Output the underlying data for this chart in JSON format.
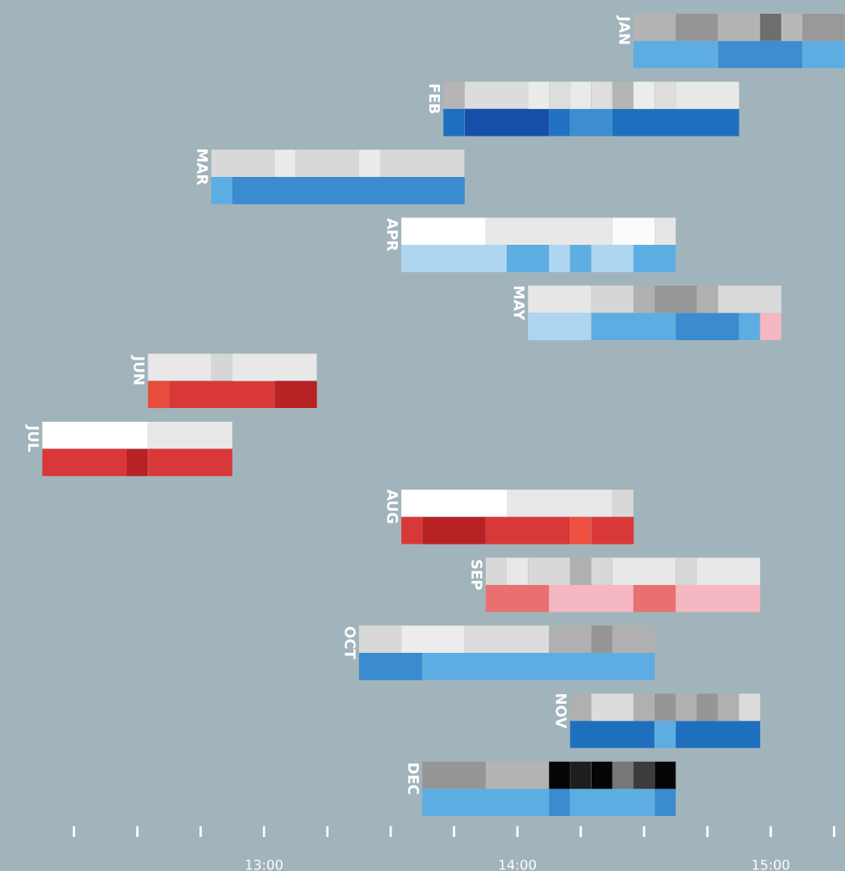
{
  "chart_data": {
    "type": "bar",
    "orientation": "horizontal",
    "categories": [
      "JAN",
      null,
      "FEB",
      null,
      "MAR",
      null,
      "APR",
      null,
      "MAY",
      null,
      "JUN",
      null,
      "JUL",
      null,
      "AUG",
      null,
      "SEP",
      null,
      "OCT",
      null,
      "NOV",
      null,
      "DEC",
      null
    ],
    "series": [
      {
        "values": [
          0.167,
          0.333,
          0.083,
          0.083,
          0.25,
          0.083,
          0.333,
          0.417,
          0.25,
          0.25,
          0.25,
          0.083,
          0.417,
          0.333,
          0.417,
          0.083,
          0.083,
          0.25,
          0.167,
          0.25,
          0.083,
          0.333,
          0.25,
          0.5
        ],
        "base": [
          14.458,
          14.458,
          13.708,
          13.708,
          12.792,
          12.792,
          13.542,
          13.542,
          14.042,
          14.042,
          12.542,
          12.542,
          12.125,
          12.125,
          13.542,
          13.542,
          13.875,
          13.875,
          13.375,
          13.375,
          14.208,
          14.208,
          13.625,
          13.625
        ],
        "colors": [
          "#b3b3b3",
          "#5dade2",
          "#b5b5b5",
          "#1f6fbf",
          "#d8d8d8",
          "#5dade2",
          "#ffffff",
          "#aed6f1",
          "#e6e6e6",
          "#aed6f1",
          "#e8e8e8",
          "#e74c3c",
          "#ffffff",
          "#d93838",
          "#ffffff",
          "#d93838",
          "#d8d8d8",
          "#e87070",
          "#d8d8d8",
          "#3a8bd0",
          "#b0b0b0",
          "#1f6fbf",
          "#959595",
          "#5dade2"
        ]
      },
      {
        "values": [
          0.167,
          0.333,
          0.25,
          0.333,
          0.083,
          0.917,
          0.5,
          0.167,
          0.167,
          0.333,
          0.083,
          0.417,
          0.333,
          0.083,
          0.417,
          0.25,
          0.083,
          0.333,
          0.25,
          0.917,
          0.167,
          0.083,
          0.25,
          0.083
        ],
        "base": [
          14.625,
          14.792,
          13.792,
          13.792,
          13.042,
          12.875,
          13.875,
          13.958,
          14.292,
          14.292,
          12.792,
          12.625,
          12.542,
          12.458,
          13.958,
          13.625,
          13.958,
          14.125,
          13.542,
          13.625,
          14.292,
          14.542,
          13.875,
          14.125
        ],
        "colors": [
          "#959595",
          "#3d8dd0",
          "#dcdcdc",
          "#1450a8",
          "#ebebeb",
          "#3a8bd0",
          "#e8e8e8",
          "#5dade2",
          "#d6d6d6",
          "#5dade2",
          "#d6d6d6",
          "#d93838",
          "#e8e8e8",
          "#b82225",
          "#e8e8e8",
          "#b82225",
          "#e8e8e8",
          "#f5b7c1",
          "#ececec",
          "#5dade2",
          "#dcdcdc",
          "#5dade2",
          "#b3b3b3",
          "#3a8bd0"
        ]
      },
      {
        "values": [
          0.167,
          0.167,
          0.083,
          0.083,
          0.25,
          null,
          0.167,
          0.083,
          0.083,
          0.25,
          0.333,
          0.167,
          null,
          0.333,
          0.083,
          0.333,
          0.167,
          0.167,
          0.333,
          null,
          0.083,
          0.333,
          0.083,
          0.333
        ],
        "base": [
          14.792,
          15.125,
          14.042,
          14.125,
          13.125,
          null,
          14.375,
          14.125,
          14.458,
          14.625,
          12.875,
          13.042,
          null,
          12.542,
          14.375,
          13.875,
          14.042,
          14.458,
          13.792,
          null,
          14.458,
          14.625,
          14.125,
          14.208
        ],
        "colors": [
          "#b3b3b3",
          "#5dade2",
          "#ebebeb",
          "#2272c3",
          "#d8d8d8",
          null,
          "#fbfbfb",
          "#aed6f1",
          "#b0b0b0",
          "#3a8bd0",
          "#e8e8e8",
          "#b82225",
          null,
          "#d93838",
          "#d8d8d8",
          "#d93838",
          "#d8d8d8",
          "#e87070",
          "#dcdcdc",
          null,
          "#b0b0b0",
          "#1f6fbf",
          "#050505",
          "#5dade2"
        ]
      },
      {
        "values": [
          0.083,
          null,
          0.083,
          0.167,
          0.083,
          null,
          0.083,
          0.083,
          0.167,
          0.083,
          null,
          null,
          null,
          null,
          null,
          0.083,
          0.083,
          0.333,
          0.167,
          null,
          0.083,
          null,
          0.083,
          0.083
        ],
        "base": [
          14.958,
          null,
          14.125,
          14.208,
          13.375,
          null,
          14.542,
          14.208,
          14.542,
          14.875,
          null,
          null,
          null,
          null,
          null,
          14.208,
          14.208,
          14.625,
          14.125,
          null,
          14.542,
          null,
          14.208,
          14.542
        ],
        "colors": [
          "#6e6e6e",
          null,
          "#dddddd",
          "#3d8dd0",
          "#ebebeb",
          null,
          "#e6e6e6",
          "#5dade2",
          "#979797",
          "#5dade2",
          null,
          null,
          null,
          null,
          null,
          "#ef5040",
          "#b0b0b0",
          "#f5b7c1",
          "#b0b0b0",
          null,
          "#959595",
          null,
          "#1e1e1e",
          "#3a8bd0"
        ]
      },
      {
        "values": [
          0.083,
          null,
          0.083,
          0.5,
          0.333,
          null,
          null,
          0.167,
          0.083,
          0.083,
          null,
          null,
          null,
          null,
          null,
          0.167,
          0.083,
          null,
          0.083,
          null,
          0.083,
          null,
          0.083,
          null
        ],
        "base": [
          15.042,
          null,
          14.208,
          14.375,
          13.458,
          null,
          null,
          14.292,
          14.708,
          14.958,
          null,
          null,
          null,
          null,
          null,
          14.292,
          14.292,
          null,
          14.292,
          null,
          14.625,
          null,
          14.292,
          null
        ],
        "colors": [
          "#b8b8b8",
          null,
          "#eaeaea",
          "#1f6fbf",
          "#d8d8d8",
          null,
          null,
          "#aed6f1",
          "#b0b0b0",
          "#f5b7c1",
          null,
          null,
          null,
          null,
          null,
          "#d93838",
          "#d8d8d8",
          null,
          "#959595",
          null,
          "#b0b0b0",
          null,
          "#050505",
          null
        ]
      },
      {
        "values": [
          0.167,
          null,
          0.083,
          null,
          null,
          null,
          null,
          0.167,
          0.25,
          null,
          null,
          null,
          null,
          null,
          null,
          null,
          0.25,
          null,
          0.167,
          null,
          0.083,
          null,
          0.083,
          null
        ],
        "base": [
          15.125,
          null,
          14.292,
          null,
          null,
          null,
          null,
          14.458,
          14.792,
          null,
          null,
          null,
          null,
          null,
          null,
          null,
          14.375,
          null,
          14.375,
          null,
          14.708,
          null,
          14.375,
          null
        ],
        "colors": [
          "#999999",
          null,
          "#dedede",
          null,
          null,
          null,
          null,
          "#5dade2",
          "#d9d9d9",
          null,
          null,
          null,
          null,
          null,
          null,
          null,
          "#e8e8e8",
          null,
          "#b0b0b0",
          null,
          "#959595",
          null,
          "#777777",
          null
        ]
      },
      {
        "values": [
          null,
          null,
          0.083,
          null,
          null,
          null,
          null,
          null,
          null,
          null,
          null,
          null,
          null,
          null,
          null,
          null,
          0.083,
          null,
          null,
          null,
          0.083,
          null,
          0.083,
          null
        ],
        "base": [
          null,
          null,
          14.375,
          null,
          null,
          null,
          null,
          null,
          null,
          null,
          null,
          null,
          null,
          null,
          null,
          null,
          14.625,
          null,
          null,
          null,
          14.792,
          null,
          14.458,
          null
        ],
        "colors": [
          null,
          null,
          "#b5b5b5",
          null,
          null,
          null,
          null,
          null,
          null,
          null,
          null,
          null,
          null,
          null,
          null,
          null,
          "#d8d8d8",
          null,
          null,
          null,
          "#b0b0b0",
          null,
          "#3c3c3c",
          null
        ]
      },
      {
        "values": [
          null,
          null,
          0.083,
          null,
          null,
          null,
          null,
          null,
          null,
          null,
          null,
          null,
          null,
          null,
          null,
          null,
          0.25,
          null,
          null,
          null,
          0.083,
          null,
          0.083,
          null
        ],
        "base": [
          null,
          null,
          14.458,
          null,
          null,
          null,
          null,
          null,
          null,
          null,
          null,
          null,
          null,
          null,
          null,
          null,
          14.708,
          null,
          null,
          null,
          14.875,
          null,
          14.542,
          null
        ],
        "colors": [
          null,
          null,
          "#ececec",
          null,
          null,
          null,
          null,
          null,
          null,
          null,
          null,
          null,
          null,
          null,
          null,
          null,
          "#e8e8e8",
          null,
          null,
          null,
          "#dcdcdc",
          null,
          "#050505",
          null
        ]
      },
      {
        "values": [
          null,
          null,
          0.083,
          null,
          null,
          null,
          null,
          null,
          null,
          null,
          null,
          null,
          null,
          null,
          null,
          null,
          null,
          null,
          null,
          null,
          null,
          null,
          null,
          null
        ],
        "base": [
          null,
          null,
          14.542,
          null,
          null,
          null,
          null,
          null,
          null,
          null,
          null,
          null,
          null,
          null,
          null,
          null,
          null,
          null,
          null,
          null,
          null,
          null,
          null,
          null
        ],
        "colors": [
          null,
          null,
          "#dddddd",
          null,
          null,
          null,
          null,
          null,
          null,
          null,
          null,
          null,
          null,
          null,
          null,
          null,
          null,
          null,
          null,
          null,
          null,
          null,
          null,
          null
        ]
      },
      {
        "values": [
          null,
          null,
          0.25,
          null,
          null,
          null,
          null,
          null,
          null,
          null,
          null,
          null,
          null,
          null,
          null,
          null,
          null,
          null,
          null,
          null,
          null,
          null,
          null,
          null
        ],
        "base": [
          null,
          null,
          14.625,
          null,
          null,
          null,
          null,
          null,
          null,
          null,
          null,
          null,
          null,
          null,
          null,
          null,
          null,
          null,
          null,
          null,
          null,
          null,
          null,
          null
        ],
        "colors": [
          null,
          null,
          "#e8e8e8",
          null,
          null,
          null,
          null,
          null,
          null,
          null,
          null,
          null,
          null,
          null,
          null,
          null,
          null,
          null,
          null,
          null,
          null,
          null,
          null,
          null
        ]
      }
    ],
    "xlim": [
      11.958,
      15.293
    ],
    "xticks": [
      {
        "value": 12.25,
        "label": null
      },
      {
        "value": 12.5,
        "label": null
      },
      {
        "value": 12.75,
        "label": null
      },
      {
        "value": 13,
        "label": "13:00"
      },
      {
        "value": 13.25,
        "label": null
      },
      {
        "value": 13.5,
        "label": null
      },
      {
        "value": 13.75,
        "label": null
      },
      {
        "value": 14,
        "label": "14:00"
      },
      {
        "value": 14.25,
        "label": null
      },
      {
        "value": 14.5,
        "label": null
      },
      {
        "value": 14.75,
        "label": null
      },
      {
        "value": 15,
        "label": "15:00"
      },
      {
        "value": 15.25,
        "label": null
      }
    ],
    "grid": false,
    "legend": false
  }
}
